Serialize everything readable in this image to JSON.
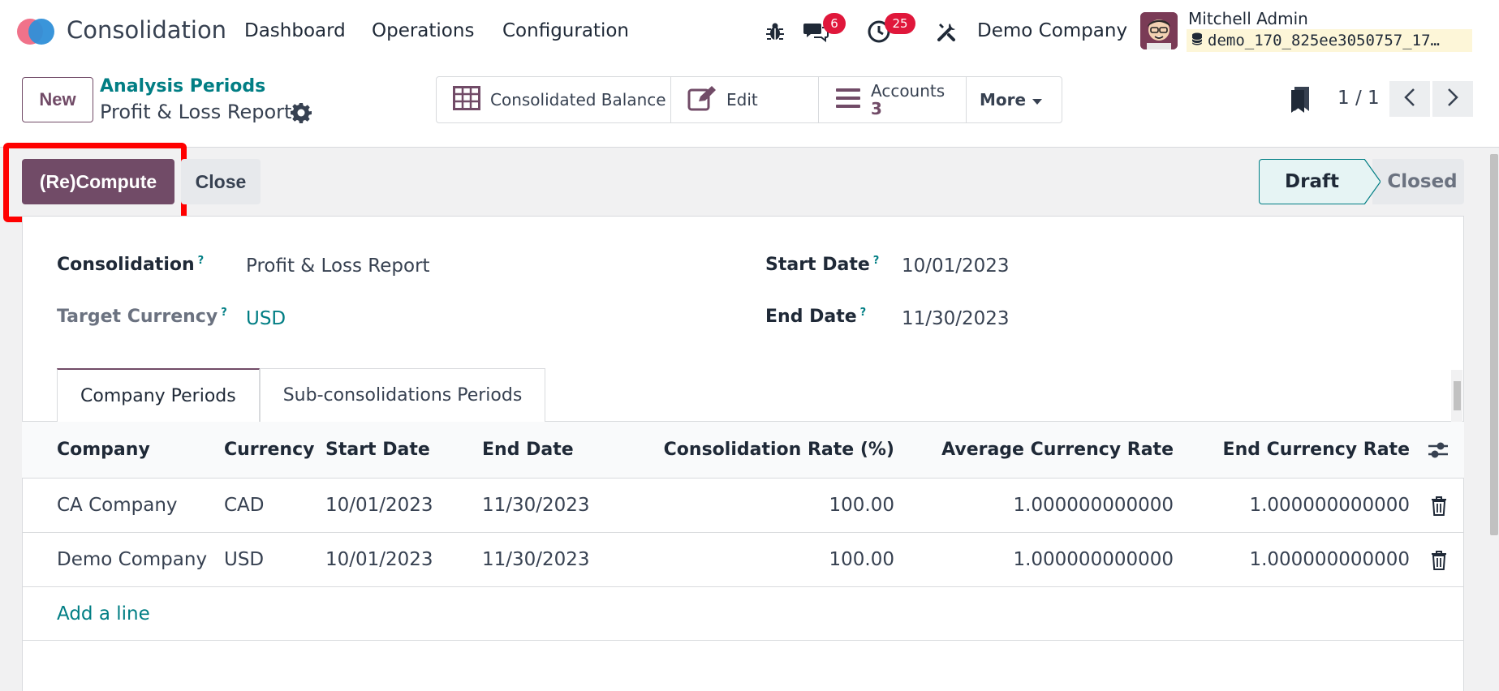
{
  "navbar": {
    "app_title": "Consolidation",
    "menu": [
      "Dashboard",
      "Operations",
      "Configuration"
    ],
    "messages_count": "6",
    "activities_count": "25",
    "company": "Demo Company",
    "user_name": "Mitchell Admin",
    "database": "demo_170_825ee3050757_17…"
  },
  "control_panel": {
    "new_label": "New",
    "breadcrumb": "Analysis Periods",
    "record_title": "Profit & Loss Report",
    "smart_buttons": {
      "consolidated_balance": "Consolidated Balance",
      "edit": "Edit",
      "accounts_label": "Accounts",
      "accounts_value": "3",
      "more": "More"
    },
    "pager": "1 / 1"
  },
  "statusbar": {
    "compute_label": "(Re)Compute",
    "close_label": "Close",
    "stages": [
      "Draft",
      "Closed"
    ],
    "current_stage": "Draft"
  },
  "form": {
    "consolidation_label": "Consolidation",
    "consolidation_value": "Profit & Loss Report",
    "target_currency_label": "Target Currency",
    "target_currency_value": "USD",
    "start_date_label": "Start Date",
    "start_date_value": "10/01/2023",
    "end_date_label": "End Date",
    "end_date_value": "11/30/2023",
    "help_mark": "?"
  },
  "tabs": [
    "Company Periods",
    "Sub-consolidations Periods"
  ],
  "table": {
    "columns": [
      "Company",
      "Currency",
      "Start Date",
      "End Date",
      "Consolidation Rate (%)",
      "Average Currency Rate",
      "End Currency Rate"
    ],
    "rows": [
      [
        "CA Company",
        "CAD",
        "10/01/2023",
        "11/30/2023",
        "100.00",
        "1.000000000000",
        "1.000000000000"
      ],
      [
        "Demo Company",
        "USD",
        "10/01/2023",
        "11/30/2023",
        "100.00",
        "1.000000000000",
        "1.000000000000"
      ]
    ],
    "add_line": "Add a line"
  },
  "colors": {
    "brand": "#714b67",
    "link": "#017e84",
    "badge": "#e0173b",
    "highlight": "#ff0000"
  }
}
